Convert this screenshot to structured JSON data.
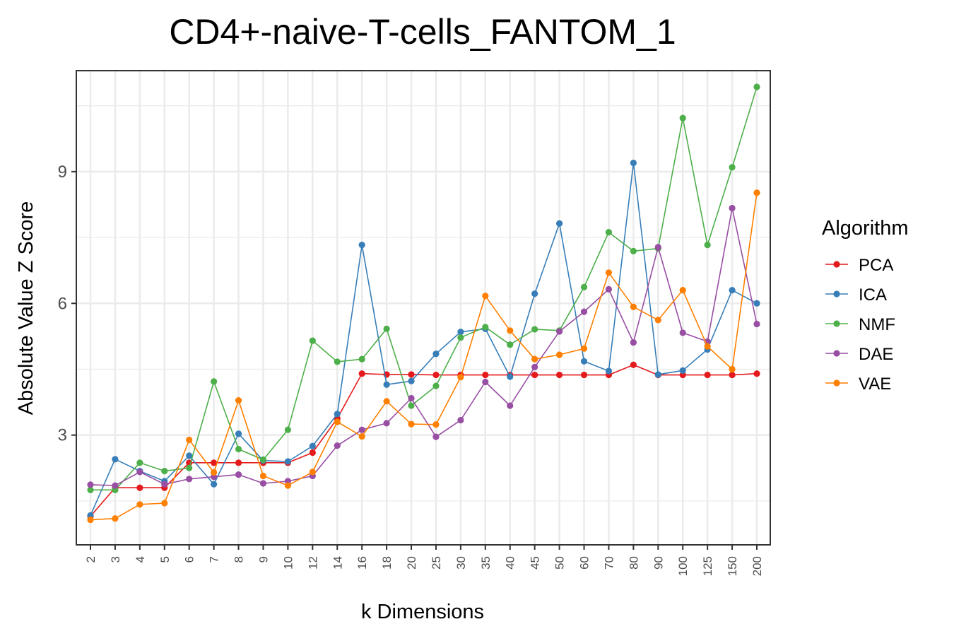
{
  "chart_data": {
    "type": "line",
    "title": "CD4+-naive-T-cells_FANTOM_1",
    "xlabel": "k Dimensions",
    "ylabel": "Absolute Value Z Score",
    "categories": [
      "2",
      "3",
      "4",
      "5",
      "6",
      "7",
      "8",
      "9",
      "10",
      "12",
      "14",
      "16",
      "18",
      "20",
      "25",
      "30",
      "35",
      "40",
      "45",
      "50",
      "60",
      "70",
      "80",
      "90",
      "100",
      "125",
      "150",
      "200"
    ],
    "yticks": [
      "3",
      "6",
      "9"
    ],
    "ylim": [
      0.5,
      11.3
    ],
    "grid": true,
    "legend": {
      "title": "Algorithm",
      "position": "right"
    },
    "series": [
      {
        "name": "PCA",
        "color": "#e41a1c",
        "values": [
          1.15,
          1.8,
          1.8,
          1.8,
          2.37,
          2.37,
          2.37,
          2.37,
          2.37,
          2.6,
          3.38,
          4.4,
          4.38,
          4.38,
          4.37,
          4.37,
          4.37,
          4.37,
          4.37,
          4.37,
          4.37,
          4.37,
          4.6,
          4.37,
          4.37,
          4.37,
          4.37,
          4.4
        ]
      },
      {
        "name": "ICA",
        "color": "#377eb8",
        "values": [
          1.17,
          2.45,
          2.18,
          1.95,
          2.53,
          1.88,
          3.03,
          2.42,
          2.4,
          2.75,
          3.48,
          7.33,
          4.15,
          4.23,
          4.85,
          5.35,
          5.42,
          4.33,
          6.22,
          7.82,
          4.68,
          4.46,
          9.2,
          4.38,
          4.47,
          4.95,
          6.3,
          6.0
        ]
      },
      {
        "name": "NMF",
        "color": "#4daf4a",
        "values": [
          1.75,
          1.75,
          2.37,
          2.18,
          2.25,
          4.22,
          2.68,
          2.44,
          3.12,
          5.15,
          4.67,
          4.73,
          5.42,
          3.67,
          4.12,
          5.22,
          5.46,
          5.06,
          5.41,
          5.38,
          6.37,
          7.62,
          7.19,
          7.25,
          10.22,
          7.33,
          9.1,
          10.93
        ]
      },
      {
        "name": "DAE",
        "color": "#984ea3",
        "values": [
          1.87,
          1.85,
          2.16,
          1.88,
          2.0,
          2.05,
          2.1,
          1.9,
          1.95,
          2.07,
          2.76,
          3.12,
          3.27,
          3.84,
          2.96,
          3.34,
          4.21,
          3.67,
          4.55,
          5.36,
          5.81,
          6.32,
          5.11,
          7.28,
          5.33,
          5.13,
          8.17,
          5.53
        ]
      },
      {
        "name": "VAE",
        "color": "#ff7f00",
        "values": [
          1.07,
          1.1,
          1.42,
          1.45,
          2.89,
          2.15,
          3.79,
          2.07,
          1.85,
          2.16,
          3.3,
          2.97,
          3.77,
          3.25,
          3.24,
          4.32,
          6.17,
          5.38,
          4.73,
          4.83,
          4.97,
          6.7,
          5.92,
          5.62,
          6.3,
          5.02,
          4.5,
          8.52
        ]
      }
    ]
  }
}
